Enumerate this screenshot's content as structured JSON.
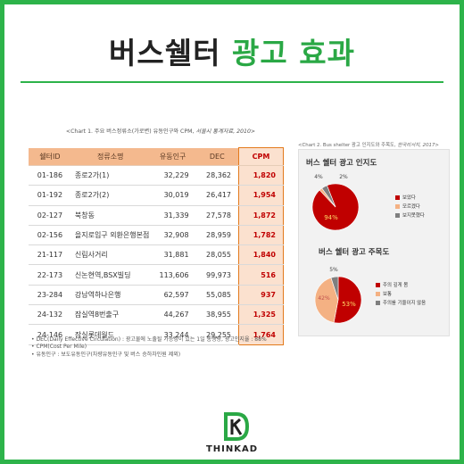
{
  "page": {
    "title_part1": "버스쉘터",
    "title_part2": "광고 효과"
  },
  "table": {
    "caption_main": "<Chart 1. 주요 버스정류소(가로변) 유동인구와 CPM,",
    "caption_source": "서울시 통계자료, 2010>",
    "headers": [
      "쉘터ID",
      "정류소명",
      "유동인구",
      "DEC",
      "CPM"
    ],
    "rows": [
      {
        "id": "01-186",
        "name": "종로2가(1)",
        "pop": "32,229",
        "dec": "28,362",
        "cpm": "1,820"
      },
      {
        "id": "01-192",
        "name": "종로2가(2)",
        "pop": "30,019",
        "dec": "26,417",
        "cpm": "1,954"
      },
      {
        "id": "02-127",
        "name": "북창동",
        "pop": "31,339",
        "dec": "27,578",
        "cpm": "1,872"
      },
      {
        "id": "02-156",
        "name": "을지로입구 외환은행본점",
        "pop": "32,908",
        "dec": "28,959",
        "cpm": "1,782"
      },
      {
        "id": "21-117",
        "name": "신림사거리",
        "pop": "31,881",
        "dec": "28,055",
        "cpm": "1,840"
      },
      {
        "id": "22-173",
        "name": "신논현역,BSX빌딩",
        "pop": "113,606",
        "dec": "99,973",
        "cpm": "516"
      },
      {
        "id": "23-284",
        "name": "강남역하나은행",
        "pop": "62,597",
        "dec": "55,085",
        "cpm": "937"
      },
      {
        "id": "24-132",
        "name": "잠실역8번출구",
        "pop": "44,267",
        "dec": "38,955",
        "cpm": "1,325"
      },
      {
        "id": "24-146",
        "name": "잠실롯데월드",
        "pop": "33,244",
        "dec": "29,255",
        "cpm": "1,764"
      }
    ],
    "notes": [
      "• DEC(Daily Effective Circulation) : 광고물에 노출될 가능성이 있는 1일 통행량, 광고인지율 : 88%",
      "• CPM(Cost Per Mile)",
      "• 유동인구 : 보도유동인구(차량유동인구 및 버스 승하차인원 제외)"
    ]
  },
  "chart_section": {
    "caption_main": "<Chart 2. Bus shelter 광고 인지도와 주목도,",
    "caption_source": "한국리서치, 2017>"
  },
  "chart_data": [
    {
      "type": "pie",
      "title": "버스 쉘터 광고 인지도",
      "labels": [
        "보았다",
        "모르겠다",
        "보지못했다"
      ],
      "values": [
        94,
        2,
        4
      ],
      "colors": [
        "#c00000",
        "#f4b183",
        "#7f7f7f"
      ],
      "data_labels": [
        "94%",
        "2%",
        "4%"
      ]
    },
    {
      "type": "pie",
      "title": "버스 쉘터 광고 주목도",
      "labels": [
        "주의 깊게 봄",
        "보통",
        "주의를 기울이지 않음"
      ],
      "values": [
        53,
        42,
        5
      ],
      "colors": [
        "#c00000",
        "#f4b183",
        "#7f7f7f"
      ],
      "data_labels": [
        "53%",
        "42%",
        "5%"
      ]
    }
  ],
  "logo": {
    "text": "THINKAD",
    "colors": {
      "green": "#2aa845",
      "dark": "#222222"
    }
  }
}
